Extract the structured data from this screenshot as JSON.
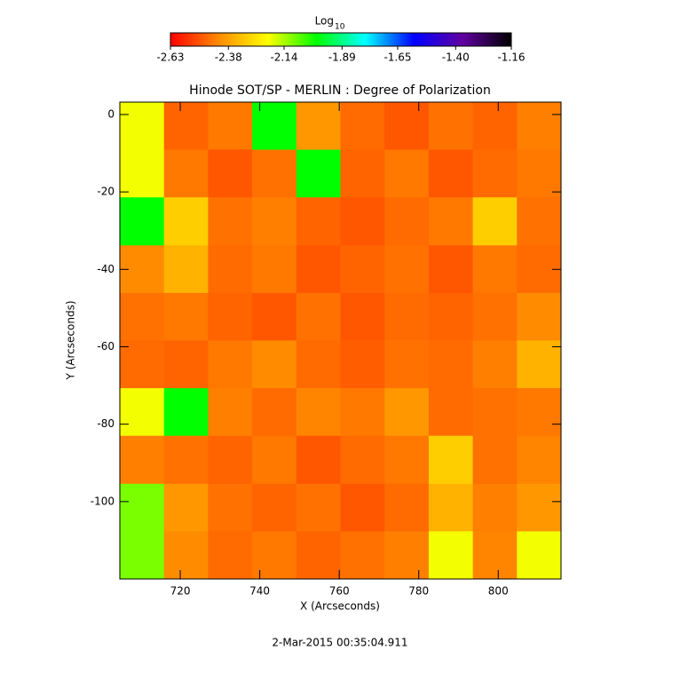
{
  "chart_data": {
    "type": "heatmap",
    "title": "Hinode SOT/SP - MERLIN : Degree of Polarization",
    "x_label": "X (Arcseconds)",
    "y_label": "Y (Arcseconds)",
    "footer": "2-Mar-2015 00:35:04.911",
    "colorbar_label": "Log",
    "colorbar_label_sub": "10",
    "colorbar_lim": [
      -2.63,
      -1.16
    ],
    "colorbar_ticks": [
      {
        "value": -2.63,
        "label": "-2.63"
      },
      {
        "value": -2.38,
        "label": "-2.38"
      },
      {
        "value": -2.14,
        "label": "-2.14"
      },
      {
        "value": -1.89,
        "label": "-1.89"
      },
      {
        "value": -1.65,
        "label": "-1.65"
      },
      {
        "value": -1.4,
        "label": "-1.40"
      },
      {
        "value": -1.16,
        "label": "-1.16"
      }
    ],
    "colormap": [
      "#ff0000",
      "#ff8c00",
      "#ffff00",
      "#00ff00",
      "#00ffff",
      "#0000ff",
      "#6000a0",
      "#000000"
    ],
    "xlim": [
      704.8,
      815.8
    ],
    "ylim": [
      -120,
      3.2
    ],
    "xticks": [
      720,
      740,
      760,
      780,
      800
    ],
    "yticks": [
      -100,
      -80,
      -60,
      -40,
      -20,
      0
    ],
    "xbins": [
      704.8,
      715.9,
      727,
      738.1,
      749.2,
      760.3,
      771.4,
      782.5,
      793.6,
      804.7,
      815.8
    ],
    "ybins": [
      3.2,
      -9.1,
      -21.4,
      -33.8,
      -46.1,
      -58.4,
      -70.7,
      -83.0,
      -95.4,
      -107.7,
      -120
    ],
    "z": [
      [
        -2.2,
        -2.48,
        -2.45,
        -2.0,
        -2.4,
        -2.47,
        -2.5,
        -2.46,
        -2.48,
        -2.44
      ],
      [
        -2.2,
        -2.45,
        -2.5,
        -2.46,
        -2.0,
        -2.48,
        -2.45,
        -2.5,
        -2.47,
        -2.45
      ],
      [
        -2.0,
        -2.3,
        -2.46,
        -2.44,
        -2.48,
        -2.5,
        -2.47,
        -2.45,
        -2.3,
        -2.46
      ],
      [
        -2.42,
        -2.35,
        -2.47,
        -2.45,
        -2.5,
        -2.48,
        -2.46,
        -2.5,
        -2.45,
        -2.47
      ],
      [
        -2.46,
        -2.45,
        -2.48,
        -2.5,
        -2.46,
        -2.5,
        -2.47,
        -2.48,
        -2.46,
        -2.42
      ],
      [
        -2.47,
        -2.48,
        -2.45,
        -2.42,
        -2.47,
        -2.49,
        -2.46,
        -2.47,
        -2.44,
        -2.35
      ],
      [
        -2.2,
        -2.0,
        -2.44,
        -2.47,
        -2.43,
        -2.45,
        -2.4,
        -2.47,
        -2.46,
        -2.45
      ],
      [
        -2.44,
        -2.46,
        -2.48,
        -2.45,
        -2.5,
        -2.47,
        -2.45,
        -2.3,
        -2.46,
        -2.43
      ],
      [
        -2.1,
        -2.4,
        -2.46,
        -2.48,
        -2.46,
        -2.5,
        -2.47,
        -2.35,
        -2.44,
        -2.4
      ],
      [
        -2.1,
        -2.42,
        -2.47,
        -2.45,
        -2.48,
        -2.46,
        -2.44,
        -2.2,
        -2.43,
        -2.2
      ]
    ]
  }
}
